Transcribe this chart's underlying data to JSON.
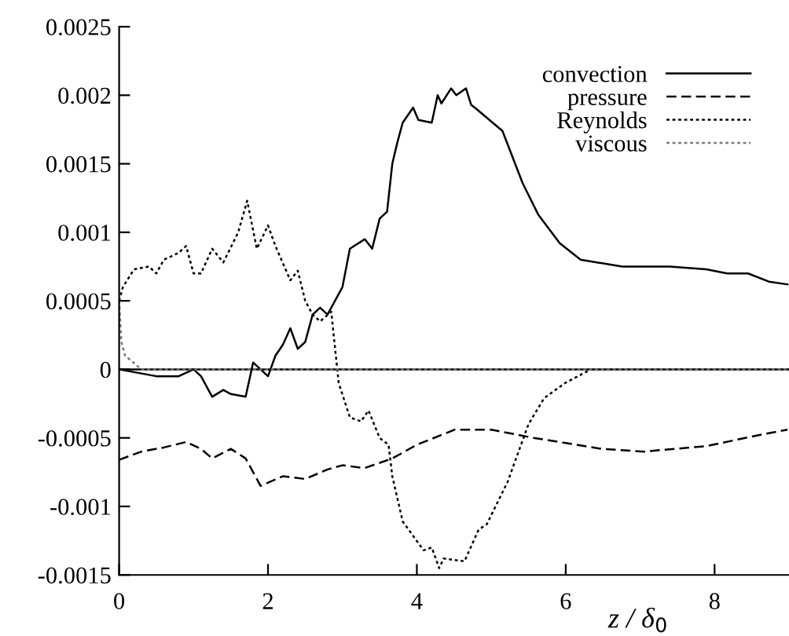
{
  "chart_data": {
    "type": "line",
    "xlabel": "z / δ$_{0}$",
    "xlim": [
      0,
      9
    ],
    "xticks": [
      0,
      2,
      4,
      6,
      8
    ],
    "ylim": [
      -0.0015,
      0.0025
    ],
    "yticks": [
      -0.0015,
      -0.001,
      -0.0005,
      0,
      0.0005,
      0.001,
      0.0015,
      0.002,
      0.0025
    ],
    "grid": false,
    "legend": "top right",
    "marker": "none",
    "ref_lines": [
      {
        "axis": "y",
        "value": 0,
        "color": "#000000",
        "line_style": "solid"
      }
    ],
    "series": [
      {
        "name": "convection",
        "color": "#000000",
        "line_style": "solid",
        "x": [
          0,
          0.5,
          0.8,
          1.0,
          1.1,
          1.25,
          1.4,
          1.5,
          1.7,
          1.8,
          1.9,
          2.0,
          2.1,
          2.2,
          2.3,
          2.4,
          2.5,
          2.6,
          2.7,
          2.8,
          2.9,
          3.0,
          3.1,
          3.3,
          3.4,
          3.5,
          3.6,
          3.67,
          3.74,
          3.81,
          3.95,
          4.02,
          4.2,
          4.28,
          4.33,
          4.46,
          4.53,
          4.66,
          4.73,
          4.8,
          5.15,
          5.42,
          5.63,
          5.92,
          6.2,
          6.76,
          7.4,
          7.89,
          8.17,
          8.45,
          8.73,
          8.98
        ],
        "values": [
          0,
          -5e-05,
          -5e-05,
          0,
          -5e-05,
          -0.0002,
          -0.00015,
          -0.00018,
          -0.0002,
          5e-05,
          0,
          -5e-05,
          0.0001,
          0.00018,
          0.0003,
          0.00015,
          0.0002,
          0.0004,
          0.00045,
          0.0004,
          0.0005,
          0.0006,
          0.00088,
          0.00095,
          0.00088,
          0.0011,
          0.00115,
          0.0015,
          0.00166,
          0.0018,
          0.00191,
          0.00182,
          0.0018,
          0.002,
          0.00194,
          0.00205,
          0.002,
          0.00205,
          0.00193,
          0.0019,
          0.00174,
          0.00136,
          0.00113,
          0.00092,
          0.0008,
          0.00075,
          0.00075,
          0.00073,
          0.0007,
          0.0007,
          0.00064,
          0.00062
        ]
      },
      {
        "name": "pressure",
        "color": "#000000",
        "line_style": "dashed",
        "x": [
          0,
          0.3,
          0.6,
          0.9,
          1.1,
          1.25,
          1.5,
          1.7,
          1.9,
          2.2,
          2.5,
          2.8,
          3.0,
          3.3,
          3.67,
          4.0,
          4.51,
          5.0,
          5.57,
          6.48,
          7.05,
          7.89,
          8.59,
          8.98
        ],
        "values": [
          -0.00066,
          -0.0006,
          -0.00057,
          -0.00053,
          -0.00058,
          -0.00065,
          -0.00058,
          -0.00065,
          -0.00085,
          -0.00078,
          -0.0008,
          -0.00073,
          -0.0007,
          -0.00072,
          -0.00065,
          -0.00055,
          -0.00044,
          -0.00044,
          -0.0005,
          -0.00058,
          -0.0006,
          -0.00056,
          -0.00048,
          -0.00044
        ]
      },
      {
        "name": "Reynolds",
        "color": "#000000",
        "line_style": "dotted",
        "x": [
          0,
          0.05,
          0.2,
          0.4,
          0.5,
          0.6,
          0.8,
          0.9,
          1.0,
          1.1,
          1.25,
          1.4,
          1.6,
          1.72,
          1.85,
          2.0,
          2.1,
          2.3,
          2.4,
          2.5,
          2.6,
          2.7,
          2.85,
          2.95,
          3.1,
          3.25,
          3.35,
          3.5,
          3.62,
          3.67,
          3.81,
          4.09,
          4.2,
          4.3,
          4.36,
          4.64,
          4.83,
          4.94,
          5.22,
          5.5,
          5.71,
          5.99,
          6.34,
          6.62,
          9.0
        ],
        "values": [
          0.0005,
          0.0006,
          0.00073,
          0.00075,
          0.0007,
          0.0008,
          0.00085,
          0.0009,
          0.0007,
          0.0007,
          0.00088,
          0.00078,
          0.001,
          0.00123,
          0.00088,
          0.00105,
          0.0009,
          0.00065,
          0.00072,
          0.0005,
          0.0004,
          0.00035,
          0.00042,
          -0.0001,
          -0.00035,
          -0.00038,
          -0.0003,
          -0.0005,
          -0.00055,
          -0.00078,
          -0.00111,
          -0.00132,
          -0.0013,
          -0.00145,
          -0.00138,
          -0.0014,
          -0.00117,
          -0.00113,
          -0.00082,
          -0.0004,
          -0.00021,
          -0.0001,
          0,
          0,
          0
        ]
      },
      {
        "name": "viscous",
        "color": "#777777",
        "line_style": "dotted",
        "x": [
          0,
          0.03,
          0.08,
          0.3,
          1.0,
          2.0,
          9.0
        ],
        "values": [
          0.0005,
          0.0002,
          0.0001,
          0,
          0,
          0,
          0
        ]
      }
    ]
  }
}
